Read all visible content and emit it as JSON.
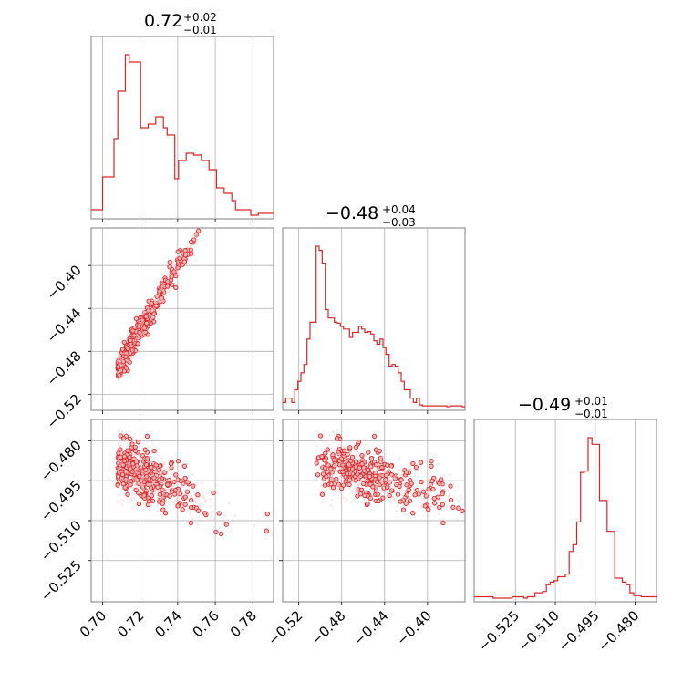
{
  "colors": {
    "series": "#d62728",
    "fill": "#f4b6b8",
    "frame": "#808080",
    "grid": "#b0b0b0"
  },
  "panel_titles": [
    {
      "value": "0.72",
      "plus": "+0.02",
      "minus": "−0.01"
    },
    {
      "value": "−0.48",
      "plus": "+0.04",
      "minus": "−0.03"
    },
    {
      "value": "−0.49",
      "plus": "+0.01",
      "minus": "−0.01"
    }
  ],
  "axis_ticks": {
    "p0": {
      "values": [
        0.7,
        0.72,
        0.74,
        0.76,
        0.78
      ],
      "labels": [
        "0.70",
        "0.72",
        "0.74",
        "0.76",
        "0.78"
      ],
      "range": [
        0.694,
        0.791
      ]
    },
    "p1": {
      "values": [
        -0.52,
        -0.48,
        -0.44,
        -0.4
      ],
      "labels": [
        "−0.52",
        "−0.48",
        "−0.44",
        "−0.40"
      ],
      "range": [
        -0.535,
        -0.365
      ]
    },
    "p2": {
      "values": [
        -0.525,
        -0.51,
        -0.495,
        -0.48
      ],
      "labels": [
        "−0.525",
        "−0.510",
        "−0.495",
        "−0.480"
      ],
      "range": [
        -0.5405,
        -0.472
      ]
    }
  },
  "chart_data": {
    "type": "corner",
    "parameters": [
      "p0",
      "p1",
      "p2"
    ],
    "histograms": [
      {
        "param": "p0",
        "type": "step-histogram",
        "range": [
          0.694,
          0.791
        ],
        "counts": [
          3,
          3,
          3,
          21,
          21,
          21,
          42,
          68,
          68,
          88,
          84,
          84,
          84,
          48,
          48,
          50,
          50,
          54,
          54,
          48,
          44,
          44,
          20,
          30,
          30,
          34,
          34,
          33,
          33,
          30,
          30,
          25,
          25,
          15,
          15,
          12,
          12,
          8,
          3,
          3,
          3,
          3,
          0,
          0,
          1,
          1,
          1,
          1
        ]
      },
      {
        "param": "p1",
        "type": "step-histogram",
        "range": [
          -0.535,
          -0.365
        ],
        "counts": [
          5,
          10,
          10,
          5,
          20,
          30,
          40,
          50,
          80,
          100,
          100,
          190,
          185,
          170,
          115,
          105,
          105,
          100,
          99,
          95,
          92,
          92,
          82,
          88,
          88,
          95,
          92,
          88,
          89,
          86,
          78,
          74,
          80,
          70,
          62,
          48,
          50,
          48,
          40,
          30,
          20,
          20,
          10,
          5,
          10,
          2,
          1,
          1,
          1,
          1,
          1,
          1,
          1,
          1,
          0,
          1,
          1,
          1,
          1,
          0
        ]
      },
      {
        "param": "p2",
        "type": "step-histogram",
        "range": [
          -0.5405,
          -0.472
        ],
        "counts": [
          1,
          1,
          1,
          1,
          1,
          0,
          0,
          0,
          0,
          0,
          1,
          1,
          1,
          0,
          1,
          1,
          4,
          4,
          5,
          10,
          12,
          13,
          16,
          16,
          18,
          35,
          40,
          57,
          94,
          95,
          120,
          115,
          115,
          73,
          73,
          50,
          50,
          15,
          15,
          12,
          10,
          4,
          2,
          2,
          1,
          1,
          1,
          1
        ]
      }
    ],
    "joint": [
      {
        "x": "p0",
        "y": "p1",
        "relation": "strong positive correlation along y ≈ −0.52 + 3.0·(x − 0.70)"
      },
      {
        "x": "p0",
        "y": "p2",
        "relation": "weak negative trend, p2 centered near −0.49"
      },
      {
        "x": "p1",
        "y": "p2",
        "relation": "weak negative trend, p2 centered near −0.49"
      }
    ]
  }
}
